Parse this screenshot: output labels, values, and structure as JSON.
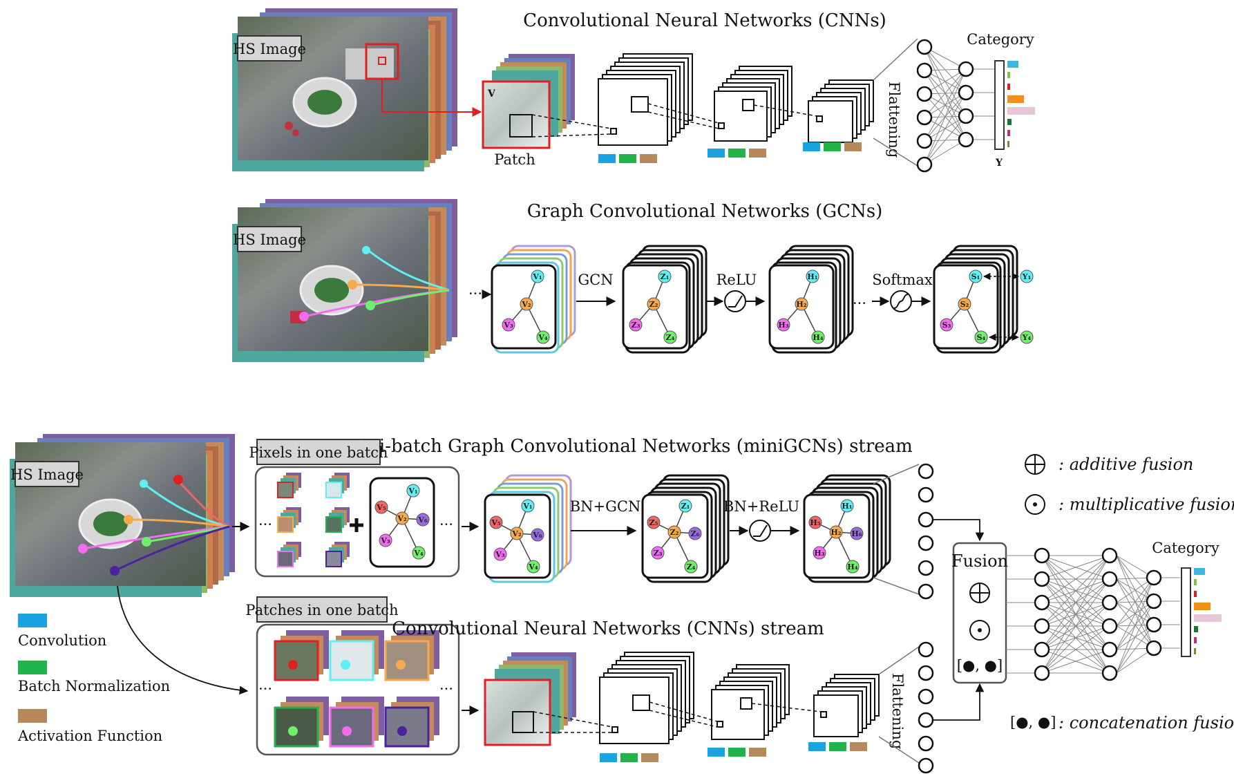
{
  "titles": {
    "cnn": "Convolutional Neural Networks (CNNs)",
    "gcn": "Graph Convolutional Networks (GCNs)",
    "minigcn": "mini-batch Graph Convolutional Networks (miniGCNs) stream",
    "cnn_stream": "Convolutional Neural Networks (CNNs) stream"
  },
  "labels": {
    "hs_image": "HS Image",
    "patch": "Patch",
    "v": "V",
    "y": "Y",
    "category": "Category",
    "flattening": "Flattening",
    "gcn_op": "GCN",
    "relu_op": "ReLU",
    "softmax_op": "Softmax",
    "bn_gcn_op": "BN+GCN",
    "bn_relu_op": "BN+ReLU",
    "pixels_batch": "Pixels in one batch",
    "patches_batch": "Patches in one batch",
    "fusion": "Fusion",
    "ellipsis": "···",
    "concat_symbol": "[●, ●]"
  },
  "legend": {
    "convolution": "Convolution",
    "batch_norm": "Batch Normalization",
    "activation": "Activation Function",
    "additive": ": additive fusion",
    "multiplicative": ": multiplicative fusion",
    "concatenation": ": concatenation  fusion"
  },
  "nodes": {
    "v1": "V₁",
    "v2": "V₂",
    "v3": "V₃",
    "v4": "V₄",
    "v5": "V₅",
    "v6": "V₆",
    "z1": "Z₁",
    "z2": "Z₂",
    "z3": "Z₃",
    "z4": "Z₄",
    "z5": "Z₅",
    "z6": "Z₆",
    "h1": "H₁",
    "h2": "H₂",
    "h3": "H₃",
    "h4": "H₄",
    "h5": "H₅",
    "h6": "H₆",
    "s1": "S₁",
    "s2": "S₂",
    "s3": "S₃",
    "s4": "S₄",
    "y1": "Y₁",
    "y4": "Y₄"
  },
  "colors": {
    "convolution": "#1aa3e0",
    "batch_norm": "#22b34a",
    "activation": "#b5895a",
    "node_cyan": "#5ff0f5",
    "node_orange": "#f7a94e",
    "node_magenta": "#f26cf0",
    "node_green": "#6ff06a",
    "node_red": "#f06565",
    "node_purple": "#9a6adf"
  }
}
